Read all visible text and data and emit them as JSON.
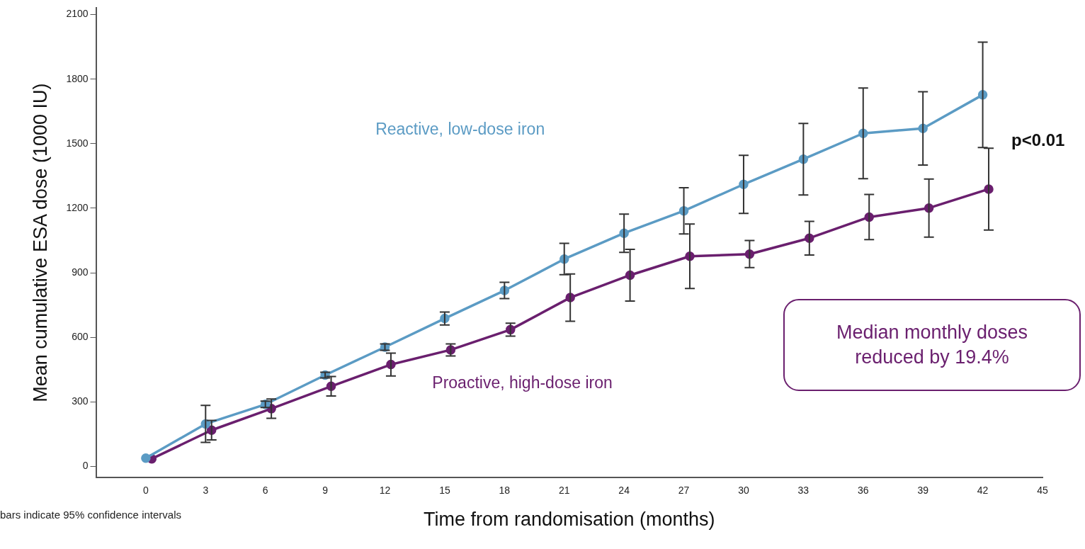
{
  "chart_data": {
    "type": "line",
    "xlabel": "Time from randomisation (months)",
    "ylabel": "Mean cumulative ESA dose (1000 IU)",
    "xlim": [
      -2.5,
      45
    ],
    "xticks": [
      0,
      3,
      6,
      9,
      12,
      15,
      18,
      21,
      24,
      27,
      30,
      33,
      36,
      39,
      42,
      45
    ],
    "ylim": [
      -50,
      2130
    ],
    "yticks": [
      0,
      300,
      600,
      900,
      1200,
      1500,
      1800,
      2100
    ],
    "marker": "circle",
    "line_style": "solid",
    "grid": false,
    "series": [
      {
        "name": "Reactive, low-dose iron",
        "color": "#5b9bc4",
        "x": [
          0,
          3,
          6,
          9,
          12,
          15,
          18,
          21,
          24,
          27,
          30,
          33,
          36,
          39,
          42
        ],
        "values": [
          39,
          198,
          289,
          425,
          555,
          688,
          818,
          964,
          1084,
          1188,
          1311,
          1428,
          1548,
          1571,
          1727
        ],
        "errors": [
          null,
          86,
          15,
          13,
          15,
          30,
          38,
          73,
          89,
          107,
          135,
          166,
          211,
          170,
          245
        ]
      },
      {
        "name": "Proactive, high-dose iron",
        "color": "#6a1f6e",
        "x": [
          0.3,
          3.3,
          6.3,
          9.3,
          12.3,
          15.3,
          18.3,
          21.3,
          24.3,
          27.3,
          30.3,
          33.3,
          36.3,
          39.3,
          42.3
        ],
        "values": [
          36,
          169,
          269,
          373,
          474,
          542,
          636,
          785,
          889,
          977,
          987,
          1061,
          1159,
          1201,
          1289
        ],
        "errors": [
          null,
          45,
          45,
          45,
          53,
          28,
          30,
          110,
          120,
          150,
          63,
          78,
          105,
          135,
          190
        ]
      }
    ],
    "annotations": [
      "p<0.01",
      "Median monthly doses reduced by 19.4%",
      "bars indicate 95% confidence intervals"
    ]
  }
}
